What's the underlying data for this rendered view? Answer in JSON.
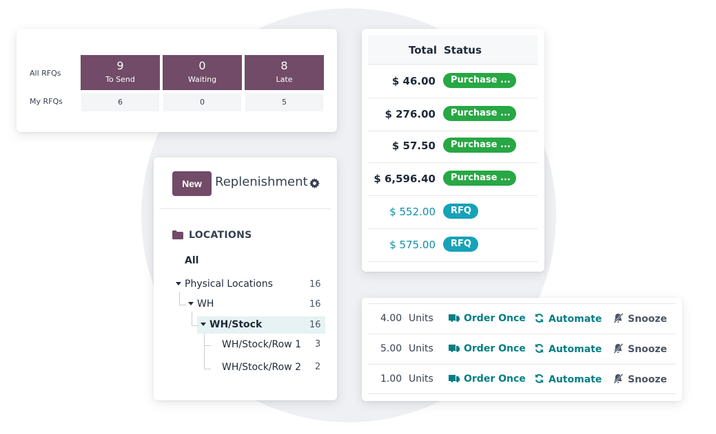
{
  "rfq_card": {
    "row_labels": [
      "All RFQs",
      "My RFQs"
    ],
    "tiles": [
      {
        "value": "9",
        "label": "To Send"
      },
      {
        "value": "0",
        "label": "Waiting"
      },
      {
        "value": "8",
        "label": "Late"
      }
    ],
    "my_values": [
      "6",
      "0",
      "5"
    ],
    "tile_color": "#714b67"
  },
  "replenishment": {
    "new_label": "New",
    "title": "Replenishment",
    "gear_icon": "gear-icon",
    "section_title": "LOCATIONS",
    "section_icon": "folder-icon",
    "all_label": "All",
    "tree": [
      {
        "label": "Physical Locations",
        "count": "16"
      },
      {
        "label": "WH",
        "count": "16"
      },
      {
        "label": "WH/Stock",
        "count": "16"
      },
      {
        "label": "WH/Stock/Row 1",
        "count": "3"
      },
      {
        "label": "WH/Stock/Row 2",
        "count": "2"
      }
    ]
  },
  "totals": {
    "headers": {
      "total": "Total",
      "status": "Status"
    },
    "rows": [
      {
        "amount": "$ 46.00",
        "status": "Purchase ..."
      },
      {
        "amount": "$ 276.00",
        "status": "Purchase ..."
      },
      {
        "amount": "$ 57.50",
        "status": "Purchase ..."
      },
      {
        "amount": "$ 6,596.40",
        "status": "Purchase ..."
      },
      {
        "amount": "$ 552.00",
        "status": "RFQ"
      },
      {
        "amount": "$ 575.00",
        "status": "RFQ"
      }
    ],
    "colors": {
      "purchase": "#28a745",
      "rfq": "#17a2b8"
    }
  },
  "units_card": {
    "rows": [
      {
        "qty": "4.00",
        "uom": "Units"
      },
      {
        "qty": "5.00",
        "uom": "Units"
      },
      {
        "qty": "1.00",
        "uom": "Units"
      }
    ],
    "actions": {
      "order_once": "Order Once",
      "automate": "Automate",
      "snooze": "Snooze"
    },
    "icons": {
      "order_once": "truck-icon",
      "automate": "refresh-icon",
      "snooze": "bell-slash-icon"
    }
  }
}
